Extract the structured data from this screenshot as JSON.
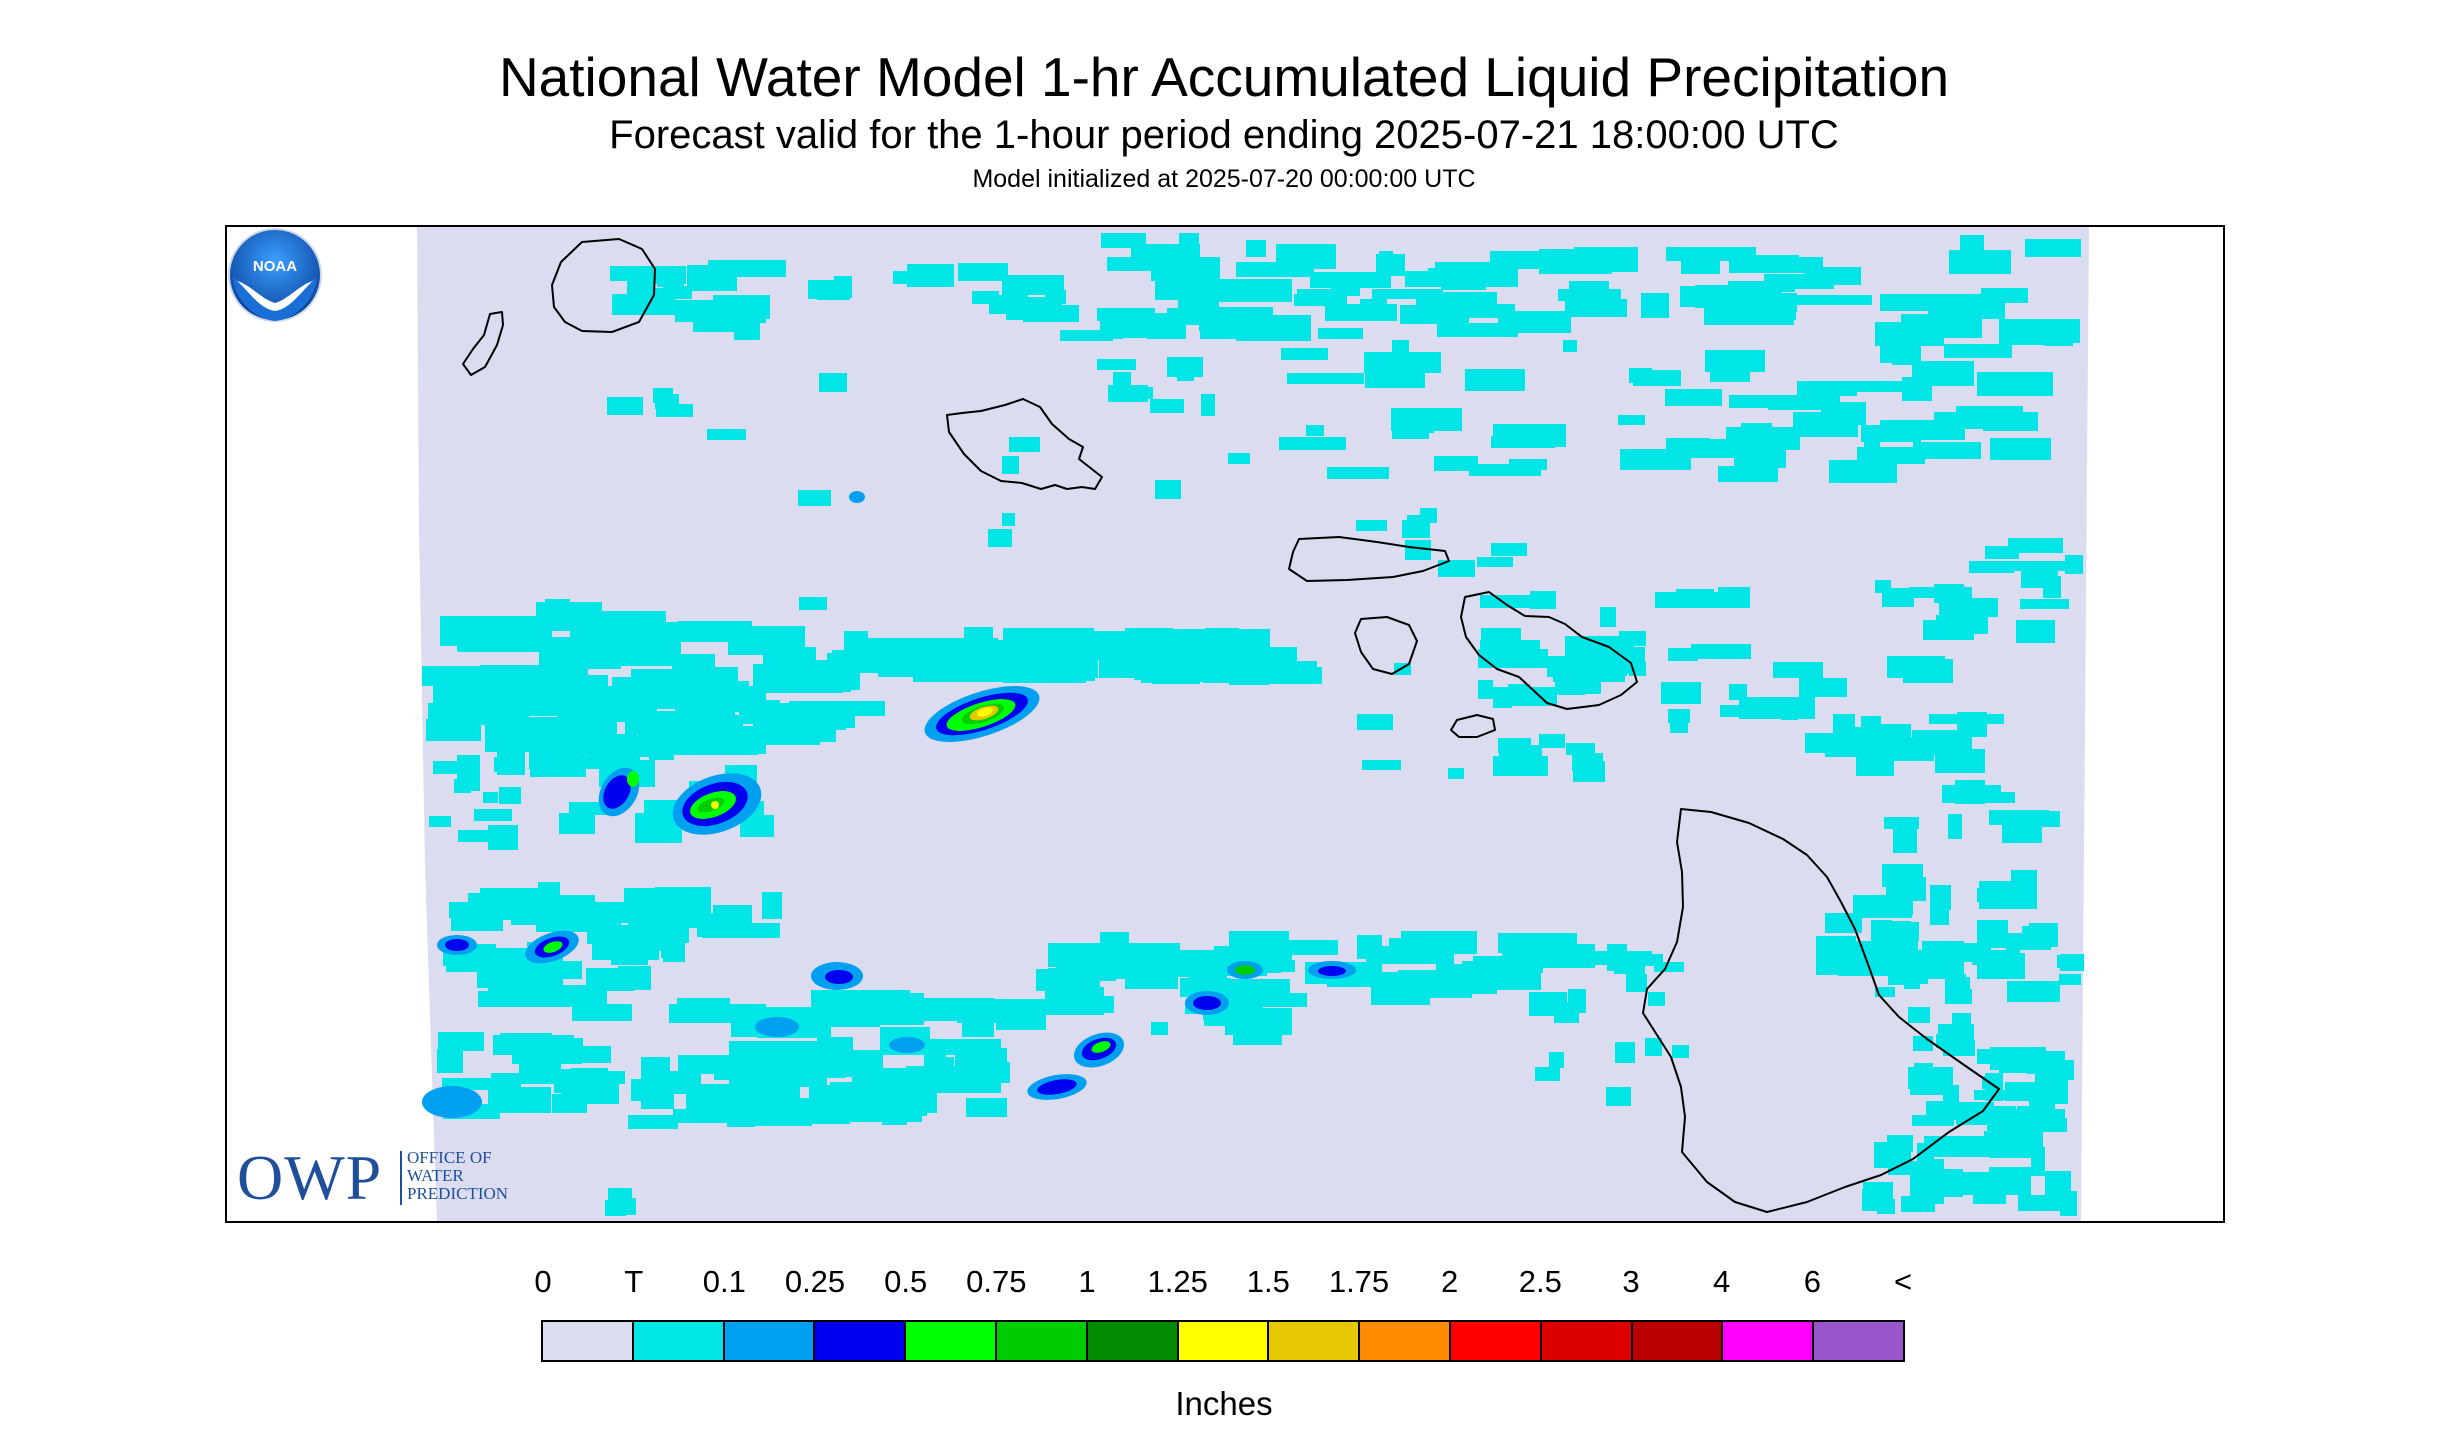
{
  "header": {
    "title": "National Water Model 1-hr Accumulated Liquid Precipitation",
    "subtitle": "Forecast valid for the 1-hour period ending 2025-07-21 18:00:00 UTC",
    "init": "Model initialized at 2025-07-20 00:00:00 UTC"
  },
  "map": {
    "region": "Hawaiian Islands",
    "background_color": "#dcdcf0",
    "coastline_color": "#000000",
    "islands": [
      "Kauai",
      "Niihau",
      "Oahu",
      "Molokai",
      "Lanai",
      "Maui",
      "Kahoolawe",
      "Hawaii"
    ]
  },
  "logos": {
    "owp_letters": "OWP",
    "owp_office": "OFFICE OF",
    "owp_water": "WATER",
    "owp_prediction": "PREDICTION",
    "noaa": "NOAA"
  },
  "legend": {
    "labels": [
      "0",
      "T",
      "0.1",
      "0.25",
      "0.5",
      "0.75",
      "1",
      "1.25",
      "1.5",
      "1.75",
      "2",
      "2.5",
      "3",
      "4",
      "6",
      "<"
    ],
    "colors": [
      "#dcdcf0",
      "#00e6e6",
      "#00a0f0",
      "#0000f0",
      "#00ff00",
      "#00cd00",
      "#008b00",
      "#ffff00",
      "#e6c800",
      "#ff8c00",
      "#ff0000",
      "#dd0000",
      "#bb0000",
      "#ff00ff",
      "#9955cc"
    ],
    "units": "Inches"
  }
}
